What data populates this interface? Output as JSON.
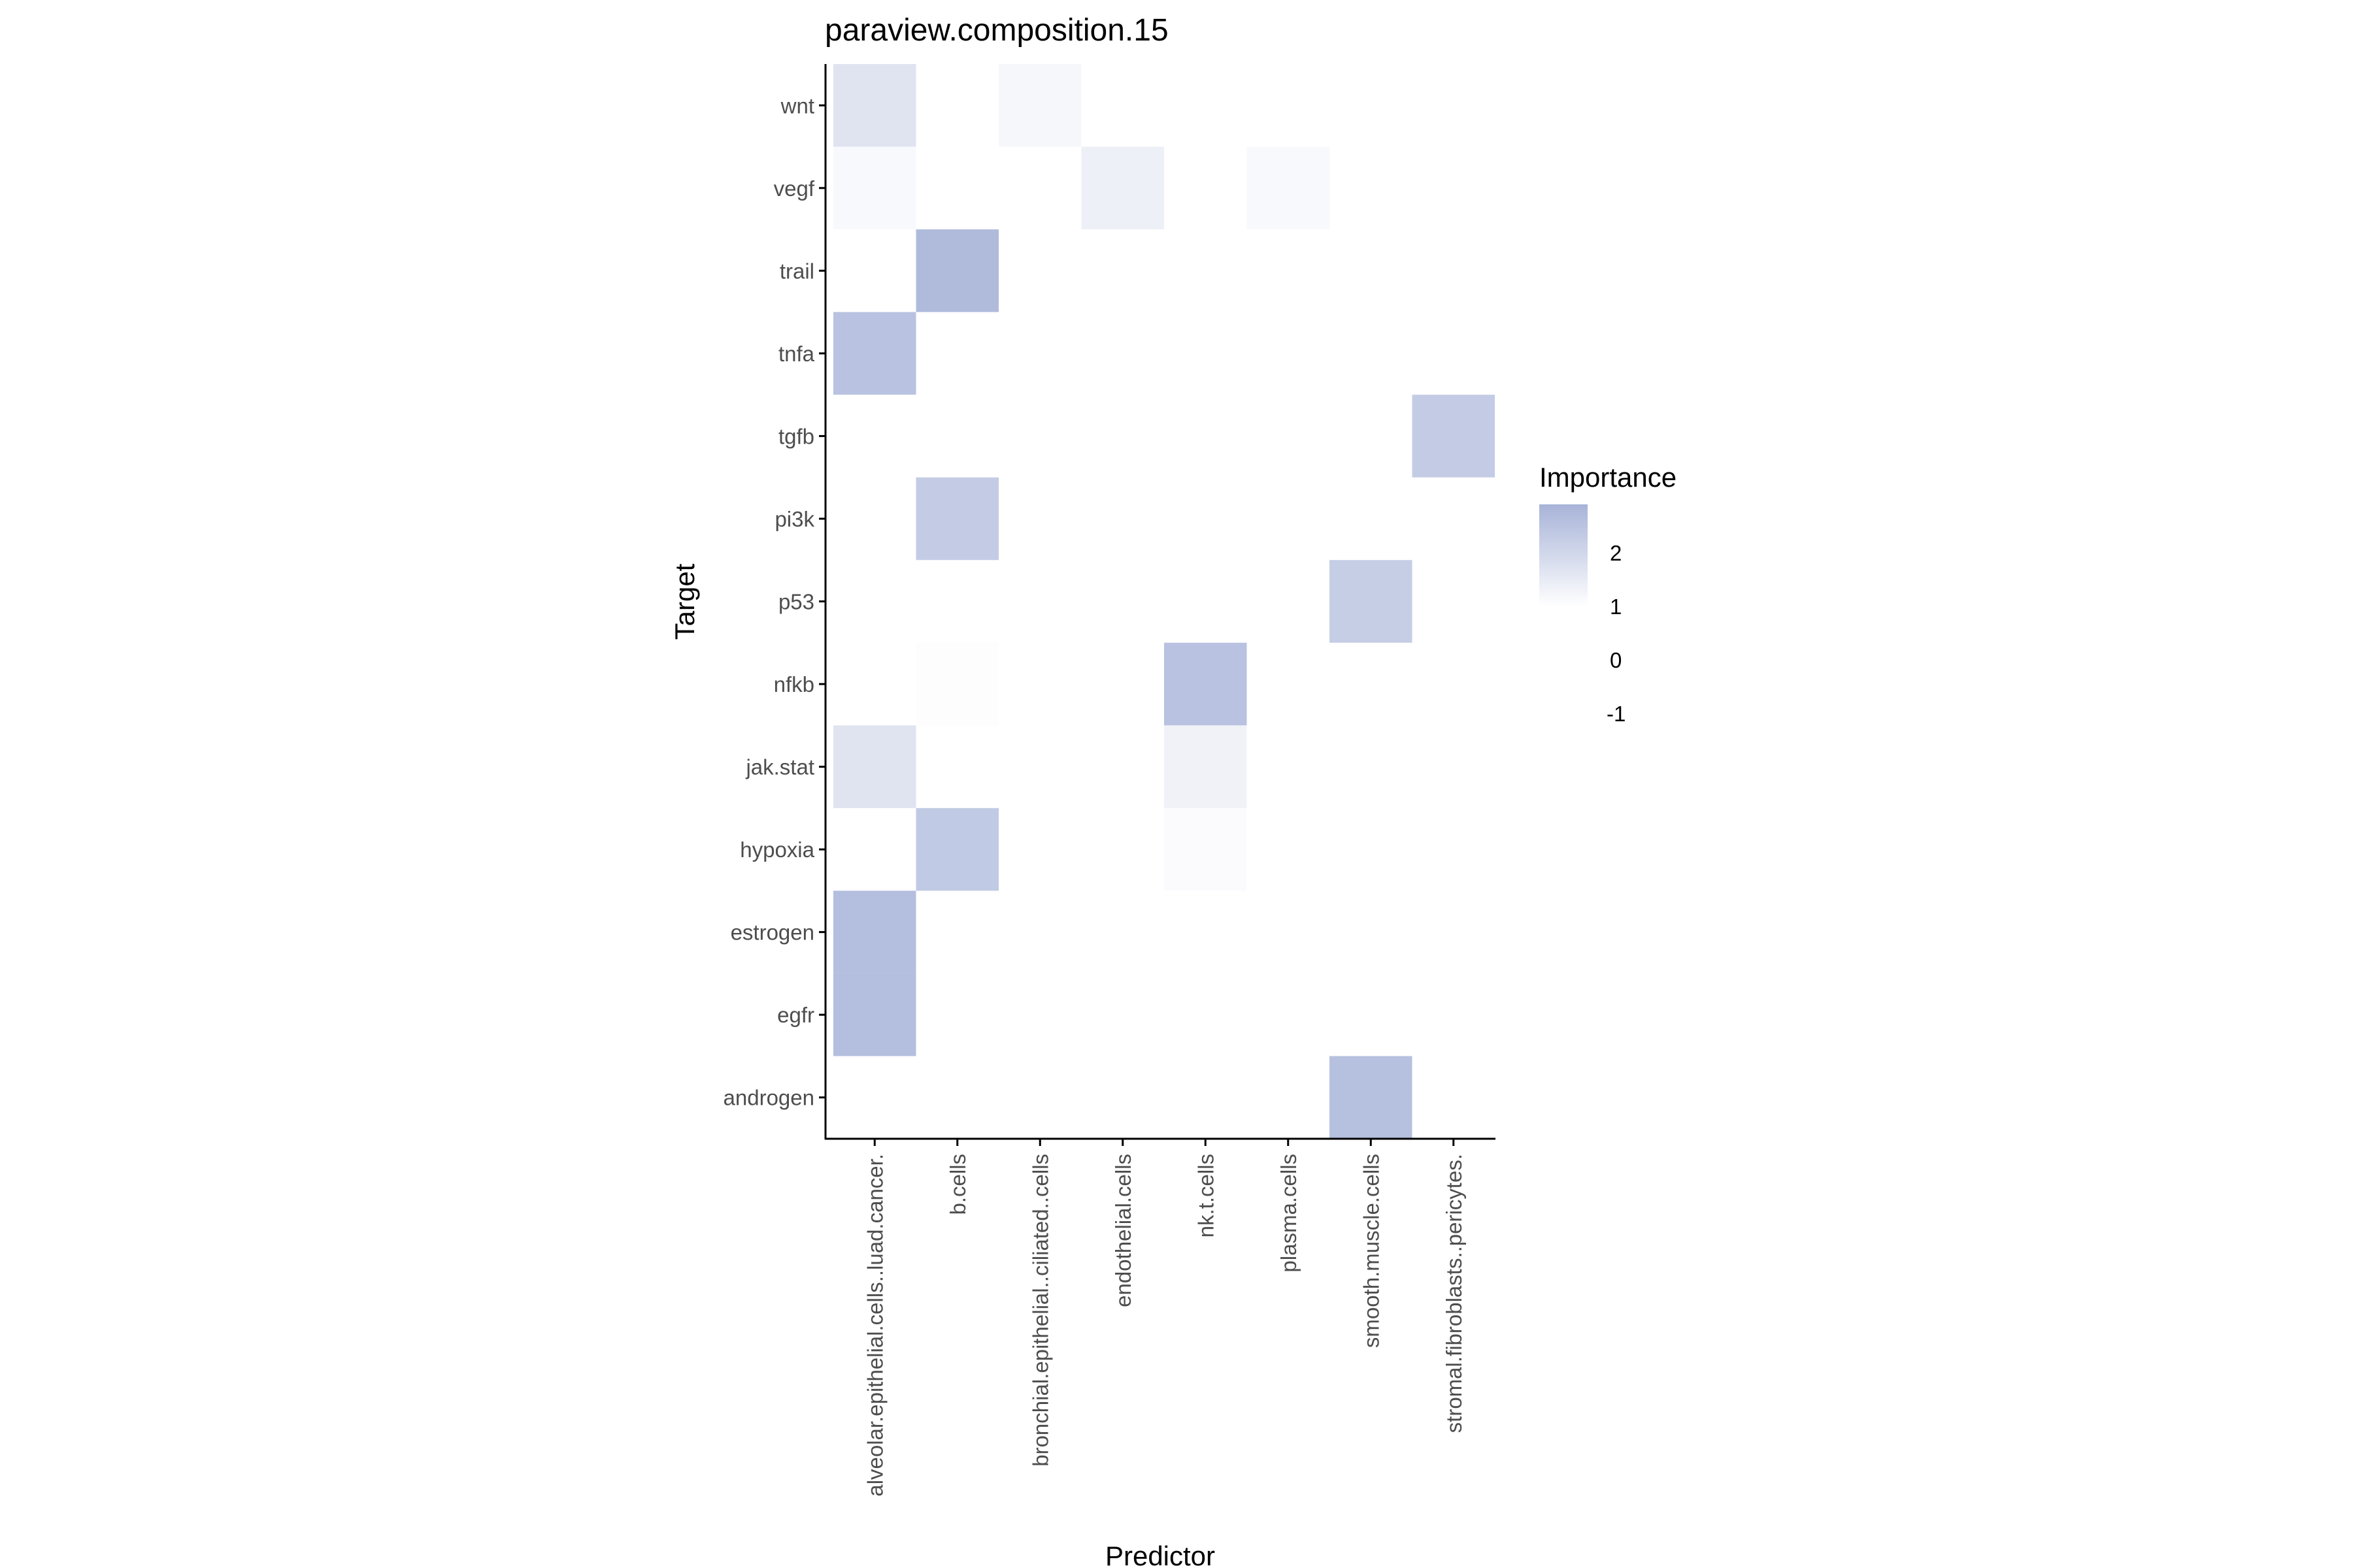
{
  "chart_data": {
    "type": "heatmap",
    "title": "paraview.composition.15",
    "xlabel": "Predictor",
    "ylabel": "Target",
    "x_categories": [
      "alveolar.epithelial.cells..luad.cancer.",
      "b.cells",
      "bronchial.epithelial..ciliated..cells",
      "endothelial.cells",
      "nk.t.cells",
      "plasma.cells",
      "smooth.muscle.cells",
      "stromal.fibroblasts..pericytes."
    ],
    "y_categories": [
      "androgen",
      "egfr",
      "estrogen",
      "hypoxia",
      "jak.stat",
      "nfkb",
      "p53",
      "pi3k",
      "tgfb",
      "tnfa",
      "trail",
      "vegf",
      "wnt"
    ],
    "cells": [
      {
        "x": "alveolar.epithelial.cells..luad.cancer.",
        "y": "wnt",
        "value": 1.7
      },
      {
        "x": "bronchial.epithelial..ciliated..cells",
        "y": "wnt",
        "value": 1.2
      },
      {
        "x": "alveolar.epithelial.cells..luad.cancer.",
        "y": "vegf",
        "value": 1.15
      },
      {
        "x": "endothelial.cells",
        "y": "vegf",
        "value": 1.4
      },
      {
        "x": "plasma.cells",
        "y": "vegf",
        "value": 1.15
      },
      {
        "x": "b.cells",
        "y": "trail",
        "value": 2.8
      },
      {
        "x": "alveolar.epithelial.cells..luad.cancer.",
        "y": "tnfa",
        "value": 2.6
      },
      {
        "x": "stromal.fibroblasts..pericytes.",
        "y": "tgfb",
        "value": 2.35
      },
      {
        "x": "b.cells",
        "y": "pi3k",
        "value": 2.35
      },
      {
        "x": "smooth.muscle.cells",
        "y": "p53",
        "value": 2.3
      },
      {
        "x": "b.cells",
        "y": "nfkb",
        "value": 1.05
      },
      {
        "x": "nk.t.cells",
        "y": "nfkb",
        "value": 2.6
      },
      {
        "x": "alveolar.epithelial.cells..luad.cancer.",
        "y": "jak.stat",
        "value": 1.7
      },
      {
        "x": "nk.t.cells",
        "y": "jak.stat",
        "value": 1.35
      },
      {
        "x": "b.cells",
        "y": "hypoxia",
        "value": 2.4
      },
      {
        "x": "nk.t.cells",
        "y": "hypoxia",
        "value": 1.1
      },
      {
        "x": "alveolar.epithelial.cells..luad.cancer.",
        "y": "estrogen",
        "value": 2.7
      },
      {
        "x": "alveolar.epithelial.cells..luad.cancer.",
        "y": "egfr",
        "value": 2.7
      },
      {
        "x": "smooth.muscle.cells",
        "y": "androgen",
        "value": 2.65
      }
    ],
    "legend": {
      "title": "Importance",
      "position": "right",
      "ticks": [
        2,
        1,
        0,
        -1
      ],
      "tick_labels": [
        "2",
        "1",
        "0",
        "-1"
      ],
      "range": [
        -1,
        3
      ],
      "low_color": "#ffffff",
      "high_color": "#a7b3d8"
    },
    "grid": false
  }
}
